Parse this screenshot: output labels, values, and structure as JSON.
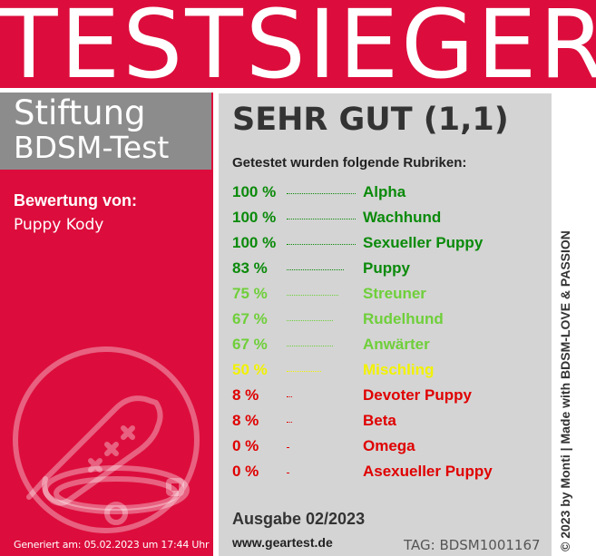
{
  "banner": {
    "title": "TESTSIEGER"
  },
  "organization": {
    "line1": "Stiftung",
    "line2": "BDSM-Test"
  },
  "rating": {
    "label": "Bewertung von:",
    "name": "Puppy Kody"
  },
  "generated": "Generiert am: 05.02.2023 um 17:44 Uhr",
  "grade": "SEHR GUT (1,1)",
  "subtitle": "Getestet wurden folgende Rubriken:",
  "results": [
    {
      "pct": "100 %",
      "category": "Alpha",
      "value": 100,
      "color": "#0a8a0a"
    },
    {
      "pct": "100 %",
      "category": "Wachhund",
      "value": 100,
      "color": "#0a8a0a"
    },
    {
      "pct": "100 %",
      "category": "Sexueller Puppy",
      "value": 100,
      "color": "#0a8a0a"
    },
    {
      "pct": "83 %",
      "category": "Puppy",
      "value": 83,
      "color": "#0a8a0a"
    },
    {
      "pct": "75 %",
      "category": "Streuner",
      "value": 75,
      "color": "#6fcf3a"
    },
    {
      "pct": "67 %",
      "category": "Rudelhund",
      "value": 67,
      "color": "#6fcf3a"
    },
    {
      "pct": "67 %",
      "category": "Anwärter",
      "value": 67,
      "color": "#6fcf3a"
    },
    {
      "pct": "50 %",
      "category": "Mischling",
      "value": 50,
      "color": "#f2f200"
    },
    {
      "pct": "8 %",
      "category": "Devoter Puppy",
      "value": 8,
      "color": "#e00000"
    },
    {
      "pct": "8 %",
      "category": "Beta",
      "value": 8,
      "color": "#e00000"
    },
    {
      "pct": "0 %",
      "category": "Omega",
      "value": 0,
      "color": "#e00000"
    },
    {
      "pct": "0 %",
      "category": "Asexueller Puppy",
      "value": 0,
      "color": "#e00000"
    }
  ],
  "footer": {
    "issue": "Ausgabe 02/2023",
    "site": "www.geartest.de",
    "tag": "TAG: BDSM1001167"
  },
  "copyright": "© 2023 by Monti | Made with BDSM-LOVE & PASSION",
  "colors": {
    "brand": "#dc0d3c",
    "org_box": "#8c8c8c",
    "panel": "#d4d4d4"
  },
  "icons": [
    "paddle-icon",
    "collar-icon"
  ]
}
